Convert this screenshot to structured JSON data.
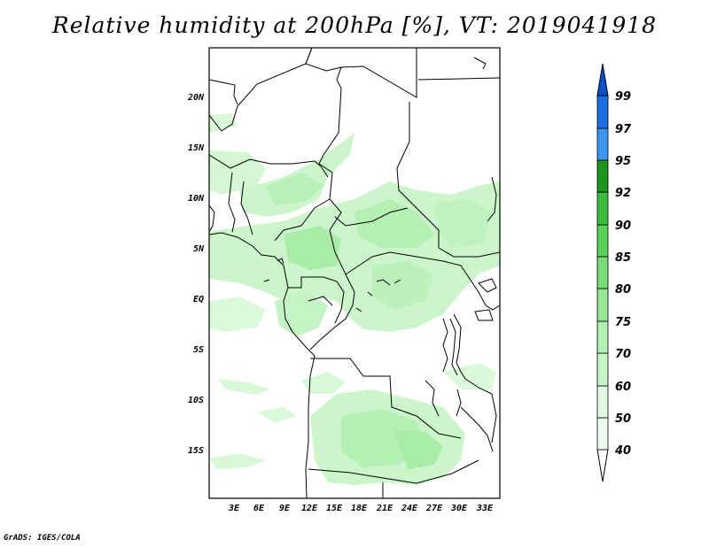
{
  "title": "Relative humidity at 200hPa [%], VT: 2019041918",
  "footer": "GrADS: IGES/COLA",
  "map": {
    "lat_labels": [
      "20N",
      "15N",
      "10N",
      "5N",
      "EQ",
      "5S",
      "10S",
      "15S"
    ],
    "lon_labels": [
      "3E",
      "6E",
      "9E",
      "12E",
      "15E",
      "18E",
      "21E",
      "24E",
      "27E",
      "30E",
      "33E"
    ]
  },
  "colorbar": {
    "levels": [
      "40",
      "50",
      "60",
      "70",
      "75",
      "80",
      "85",
      "90",
      "92",
      "95",
      "97",
      "99"
    ],
    "colors": [
      "#f0fff0",
      "#e1fce1",
      "#c8f5c8",
      "#b4f0b4",
      "#96e696",
      "#78dc78",
      "#5ad25a",
      "#3cbe3c",
      "#1e961e",
      "#0a780a",
      "#3c96f0",
      "#1e6ee6",
      "#0a50c8"
    ]
  }
}
